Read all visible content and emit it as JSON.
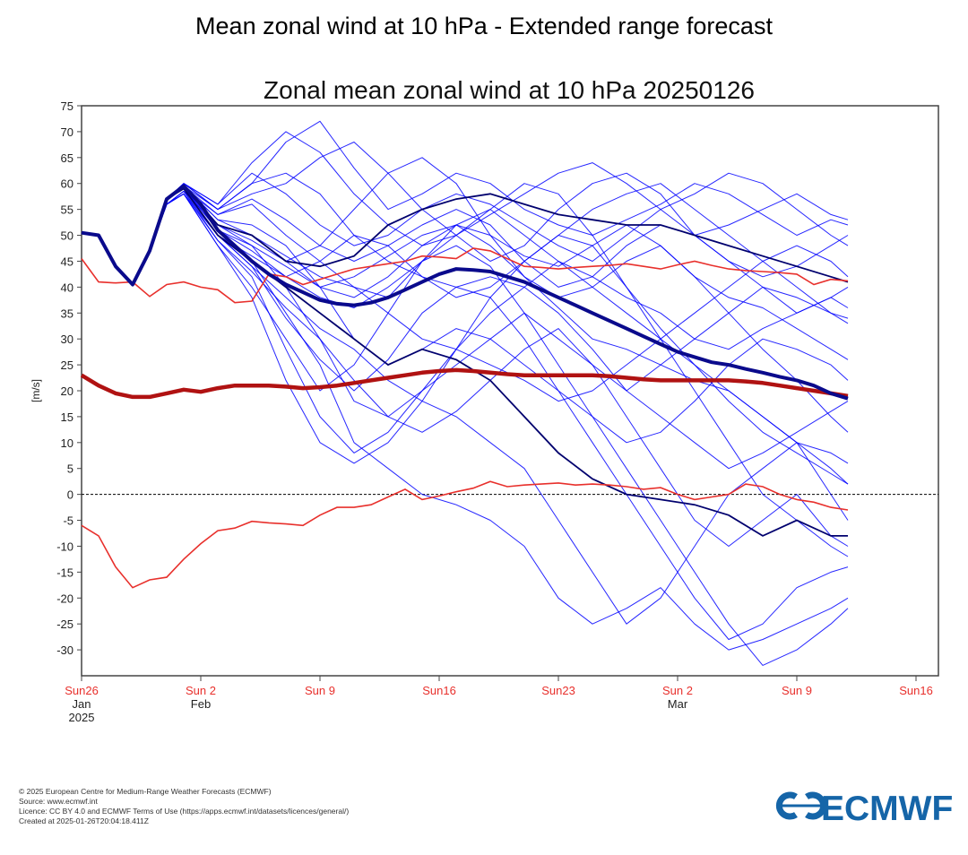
{
  "page_title": "Mean zonal wind at 10 hPa - Extended range forecast",
  "footer": {
    "lines": [
      "© 2025 European Centre for Medium-Range Weather Forecasts (ECMWF)",
      "Source: www.ecmwf.int",
      "Licence: CC BY 4.0 and ECMWF Terms of Use (https://apps.ecmwf.int/datasets/licences/general/)",
      "Created at 2025-01-26T20:04:18.411Z"
    ],
    "logo_text": "ECMWF",
    "logo_color": "#1565a8"
  },
  "chart_data": {
    "type": "line",
    "title": "Zonal mean zonal wind at 10 hPa 20250126",
    "ylabel": "[m/s]",
    "xlabel": "",
    "ylim": [
      -35,
      75
    ],
    "xlim": [
      "2025-01-26",
      "2025-03-16"
    ],
    "yticks": [
      -30,
      -25,
      -20,
      -15,
      -10,
      -5,
      0,
      5,
      10,
      15,
      20,
      25,
      30,
      35,
      40,
      45,
      50,
      55,
      60,
      65,
      70,
      75
    ],
    "xticks": [
      {
        "date": "2025-01-26",
        "label": "Sun26",
        "month": "Jan",
        "year": "2025"
      },
      {
        "date": "2025-02-02",
        "label": "Sun 2",
        "month": "Feb"
      },
      {
        "date": "2025-02-09",
        "label": "Sun 9"
      },
      {
        "date": "2025-02-16",
        "label": "Sun16"
      },
      {
        "date": "2025-02-23",
        "label": "Sun23"
      },
      {
        "date": "2025-03-02",
        "label": "Sun 2",
        "month": "Mar"
      },
      {
        "date": "2025-03-09",
        "label": "Sun 9"
      },
      {
        "date": "2025-03-16",
        "label": "Sun16"
      }
    ],
    "reference_line": 0,
    "grid": false,
    "colors": {
      "members": "#0000ff",
      "ensemble_mean": "#0a0a8c",
      "highlight_members": "#00006e",
      "climate_mean": "#b01212",
      "climate_extremes": "#e8302c",
      "tick_labels": "#e8302c"
    },
    "daily_dates_start": "2025-01-26",
    "ensemble_mean": [
      50.5,
      50,
      44,
      40.5,
      47,
      57,
      59.5,
      56,
      51,
      48,
      45,
      42.5,
      40.5,
      39,
      37.5,
      36.8,
      36.5,
      37,
      38,
      39.5,
      41,
      42.5,
      43.5,
      43.3,
      43,
      42,
      41,
      39.5,
      38,
      36.5,
      35,
      33.5,
      32,
      30.5,
      29,
      27.5,
      26.5,
      25.5,
      25,
      24.2,
      23.5,
      22.7,
      22,
      21,
      19.5,
      18.5
    ],
    "climate_mean": [
      23,
      21,
      19.5,
      18.8,
      18.8,
      19.5,
      20.2,
      19.8,
      20.5,
      21,
      21,
      21,
      20.8,
      20.5,
      20.7,
      21,
      21.5,
      22,
      22.5,
      23,
      23.5,
      23.8,
      24,
      23.8,
      23.5,
      23.2,
      23,
      23,
      23,
      23,
      23,
      22.8,
      22.5,
      22.2,
      22,
      22,
      22,
      22,
      22,
      21.8,
      21.5,
      21,
      20.5,
      20,
      19.5,
      19
    ],
    "climate_max": [
      45.5,
      41,
      40.8,
      41,
      38.2,
      40.5,
      41,
      40,
      39.5,
      37,
      37.3,
      42.5,
      42,
      40.5,
      41.5,
      42.5,
      43.5,
      44,
      44.5,
      45,
      46,
      45.8,
      45.5,
      47.5,
      47,
      45.5,
      44,
      43.8,
      43.5,
      43.8,
      44,
      44.2,
      44.5,
      44,
      43.5,
      44.3,
      45,
      44.2,
      43.5,
      43.2,
      43,
      42.8,
      42.5,
      40.5,
      41.5,
      41.2
    ],
    "climate_min": [
      -6,
      -8,
      -14,
      -18,
      -16.5,
      -16,
      -12.5,
      -9.5,
      -7,
      -6.5,
      -5.2,
      -5.5,
      -5.7,
      -6,
      -4,
      -2.5,
      -2.5,
      -2,
      -0.5,
      1,
      -1,
      -0.3,
      0.5,
      1.2,
      2.5,
      1.5,
      1.8,
      2,
      2.2,
      1.8,
      2,
      1.8,
      1.5,
      1,
      1.3,
      0,
      -1,
      -0.5,
      0,
      2,
      1.5,
      0,
      -1,
      -1.5,
      -2.5,
      -3
    ],
    "member_days": [
      0,
      1,
      2,
      3,
      4,
      5,
      6,
      8,
      10,
      12,
      14,
      16,
      18,
      20,
      22,
      24,
      26,
      28,
      30,
      32,
      34,
      36,
      38,
      40,
      42,
      44,
      45
    ],
    "members": [
      [
        50.5,
        50,
        44,
        40.5,
        47,
        57,
        59.5,
        55,
        60,
        68,
        72,
        63,
        55,
        58,
        62,
        60,
        55,
        52,
        50,
        53,
        56,
        60,
        58,
        54,
        50,
        53,
        52
      ],
      [
        50.5,
        50,
        44,
        40.5,
        47,
        56,
        58.5,
        52,
        48,
        40,
        30,
        18,
        15,
        20,
        28,
        35,
        40,
        45,
        42,
        38,
        35,
        30,
        28,
        32,
        35,
        38,
        36
      ],
      [
        50.5,
        50,
        44,
        40.5,
        47,
        56,
        58,
        50,
        45,
        35,
        25,
        10,
        5,
        0,
        -2,
        -5,
        -10,
        -20,
        -25,
        -22,
        -18,
        -25,
        -30,
        -28,
        -25,
        -22,
        -20
      ],
      [
        50.5,
        50,
        44,
        40.5,
        47,
        57,
        59,
        54,
        56,
        50,
        45,
        40,
        38,
        45,
        52,
        55,
        50,
        45,
        40,
        35,
        30,
        25,
        20,
        15,
        10,
        5,
        2
      ],
      [
        50.5,
        50,
        44,
        40.5,
        47,
        56,
        58,
        48,
        40,
        30,
        20,
        25,
        35,
        45,
        50,
        55,
        60,
        58,
        50,
        40,
        30,
        20,
        10,
        0,
        -5,
        -10,
        -12
      ],
      [
        50.5,
        50,
        44,
        40.5,
        47,
        57,
        60,
        56,
        62,
        58,
        52,
        48,
        50,
        55,
        58,
        56,
        52,
        48,
        45,
        50,
        55,
        58,
        62,
        60,
        55,
        50,
        48
      ],
      [
        50.5,
        50,
        44,
        40.5,
        47,
        57,
        59,
        51,
        47,
        42,
        38,
        36,
        40,
        45,
        48,
        44,
        35,
        25,
        15,
        5,
        -5,
        -15,
        -25,
        -33,
        -30,
        -25,
        -22
      ],
      [
        50.5,
        50,
        44,
        40.5,
        47,
        57,
        59.5,
        53,
        50,
        45,
        48,
        55,
        62,
        65,
        60,
        50,
        42,
        38,
        40,
        45,
        48,
        42,
        35,
        28,
        22,
        15,
        12
      ],
      [
        50.5,
        50,
        44,
        40.5,
        47,
        56,
        58,
        49,
        42,
        28,
        15,
        8,
        12,
        20,
        25,
        30,
        35,
        30,
        25,
        20,
        25,
        30,
        35,
        40,
        38,
        35,
        34
      ],
      [
        50.5,
        50,
        44,
        40.5,
        47,
        57,
        60,
        55,
        58,
        60,
        65,
        68,
        62,
        55,
        50,
        45,
        48,
        55,
        60,
        62,
        58,
        50,
        45,
        40,
        35,
        38,
        40
      ],
      [
        50.5,
        50,
        44,
        40.5,
        47,
        57,
        59,
        50,
        44,
        38,
        32,
        28,
        22,
        18,
        15,
        10,
        5,
        -5,
        -15,
        -25,
        -20,
        -10,
        0,
        5,
        10,
        8,
        6
      ],
      [
        50.5,
        50,
        44,
        40.5,
        47,
        57,
        59.5,
        54,
        57,
        53,
        48,
        45,
        48,
        52,
        55,
        52,
        45,
        40,
        42,
        48,
        52,
        50,
        45,
        42,
        44,
        48,
        50
      ],
      [
        50.5,
        50,
        44,
        40.5,
        47,
        56,
        58,
        48,
        38,
        22,
        10,
        6,
        10,
        18,
        28,
        38,
        45,
        50,
        48,
        40,
        32,
        25,
        18,
        12,
        8,
        4,
        2
      ],
      [
        50.5,
        50,
        44,
        40.5,
        47,
        57,
        59,
        52,
        50,
        46,
        42,
        40,
        35,
        30,
        28,
        25,
        22,
        18,
        20,
        25,
        30,
        35,
        40,
        45,
        48,
        45,
        42
      ],
      [
        50.5,
        50,
        44,
        40.5,
        47,
        57,
        60,
        55,
        60,
        62,
        58,
        50,
        45,
        42,
        40,
        38,
        30,
        20,
        10,
        0,
        -10,
        -20,
        -28,
        -25,
        -18,
        -15,
        -14
      ],
      [
        50.5,
        50,
        44,
        40.5,
        47,
        57,
        59,
        50,
        46,
        42,
        45,
        50,
        48,
        42,
        38,
        40,
        45,
        50,
        55,
        58,
        60,
        55,
        50,
        45,
        40,
        35,
        33
      ],
      [
        50.5,
        50,
        44,
        40.5,
        47,
        57,
        59.5,
        53,
        52,
        48,
        40,
        30,
        25,
        28,
        32,
        30,
        25,
        20,
        15,
        10,
        12,
        18,
        25,
        30,
        28,
        25,
        22
      ],
      [
        50.5,
        50,
        44,
        40.5,
        47,
        57,
        59,
        51,
        48,
        44,
        40,
        42,
        46,
        50,
        52,
        48,
        42,
        36,
        30,
        28,
        25,
        22,
        20,
        15,
        10,
        0,
        -5
      ],
      [
        50.5,
        50,
        44,
        40.5,
        47,
        57,
        60,
        56,
        64,
        70,
        66,
        58,
        52,
        48,
        50,
        54,
        58,
        62,
        64,
        60,
        55,
        50,
        52,
        55,
        58,
        54,
        53
      ],
      [
        50.5,
        50,
        44,
        40.5,
        47,
        56,
        58.5,
        49,
        43,
        36,
        30,
        22,
        15,
        12,
        16,
        22,
        28,
        32,
        25,
        15,
        5,
        -5,
        -10,
        -5,
        0,
        -8,
        -10
      ],
      [
        50.5,
        50,
        44,
        40.5,
        47,
        57,
        59,
        52,
        49,
        45,
        40,
        38,
        42,
        48,
        52,
        50,
        46,
        44,
        48,
        52,
        48,
        42,
        38,
        36,
        32,
        28,
        26
      ],
      [
        50.5,
        50,
        44,
        40.5,
        47,
        56,
        58.5,
        50,
        44,
        34,
        26,
        20,
        26,
        35,
        40,
        42,
        40,
        35,
        28,
        20,
        15,
        10,
        5,
        8,
        12,
        16,
        18
      ]
    ],
    "highlight_members": [
      [
        50.5,
        50,
        44,
        40.5,
        47,
        57,
        59.5,
        52,
        50,
        45,
        44,
        46,
        52,
        55,
        57,
        58,
        56,
        54,
        53,
        52,
        52,
        50,
        48,
        46,
        44,
        42,
        41
      ],
      [
        50.5,
        50,
        44,
        40.5,
        47,
        57,
        59,
        50,
        45,
        40,
        35,
        30,
        25,
        28,
        26,
        22,
        15,
        8,
        3,
        0,
        -1,
        -2,
        -4,
        -8,
        -5,
        -8,
        -8
      ]
    ]
  }
}
